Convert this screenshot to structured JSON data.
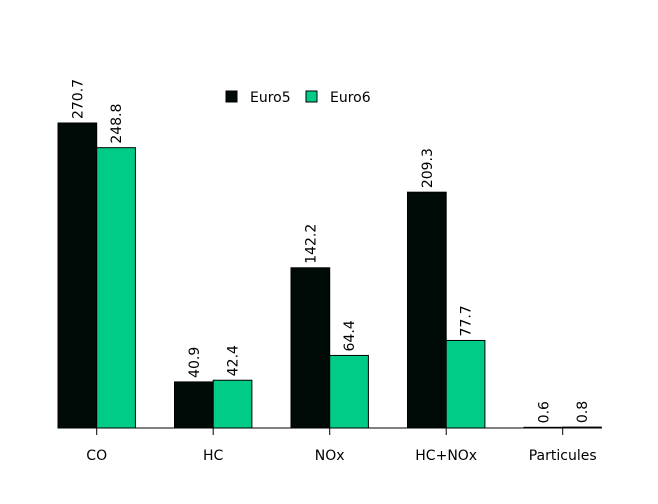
{
  "chart_data": {
    "type": "bar",
    "categories": [
      "CO",
      "HC",
      "NOx",
      "HC+NOx",
      "Particules"
    ],
    "series": [
      {
        "name": "Euro5",
        "values": [
          270.7,
          40.9,
          142.2,
          209.3,
          0.6
        ],
        "color": "#000a06"
      },
      {
        "name": "Euro6",
        "values": [
          248.8,
          42.4,
          64.4,
          77.7,
          0.8
        ],
        "color": "#00cc88"
      }
    ],
    "data_labels": [
      [
        "270.7",
        "40.9",
        "142.2",
        "209.3",
        "0.6"
      ],
      [
        "248.8",
        "42.4",
        "64.4",
        "77.7",
        "0.8"
      ]
    ],
    "ylim": [
      0,
      270.7
    ],
    "grid": false,
    "legend_position": "top-center",
    "data_label_orientation": "vertical"
  }
}
